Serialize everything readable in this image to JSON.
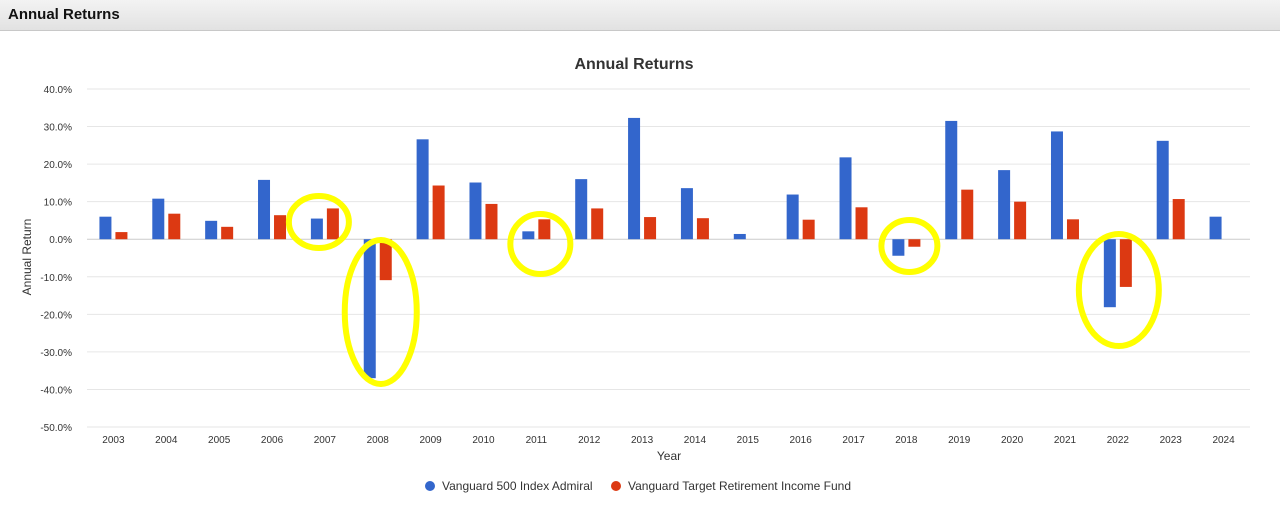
{
  "header": {
    "title": "Annual Returns"
  },
  "colors": {
    "series1": "#3366cc",
    "series2": "#dc3912",
    "highlight": "#ffff00",
    "grid": "#e6e6e6"
  },
  "chart_data": {
    "type": "bar",
    "title": "Annual Returns",
    "xlabel": "Year",
    "ylabel": "Annual Return",
    "ylim": [
      -50,
      40
    ],
    "yticks": [
      "40.0%",
      "30.0%",
      "20.0%",
      "10.0%",
      "0.0%",
      "-10.0%",
      "-20.0%",
      "-30.0%",
      "-40.0%",
      "-50.0%"
    ],
    "ytick_values": [
      40,
      30,
      20,
      10,
      0,
      -10,
      -20,
      -30,
      -40,
      -50
    ],
    "categories": [
      "2003",
      "2004",
      "2005",
      "2006",
      "2007",
      "2008",
      "2009",
      "2010",
      "2011",
      "2012",
      "2013",
      "2014",
      "2015",
      "2016",
      "2017",
      "2018",
      "2019",
      "2020",
      "2021",
      "2022",
      "2023",
      "2024"
    ],
    "series": [
      {
        "name": "Vanguard 500 Index Admiral",
        "values": [
          6.0,
          10.8,
          4.9,
          15.8,
          5.5,
          -37.0,
          26.6,
          15.1,
          2.1,
          16.0,
          32.3,
          13.6,
          1.4,
          11.9,
          21.8,
          -4.4,
          31.5,
          18.4,
          28.7,
          -18.1,
          26.2,
          6.0
        ]
      },
      {
        "name": "Vanguard Target Retirement Income Fund",
        "values": [
          1.9,
          6.8,
          3.3,
          6.4,
          8.2,
          -10.9,
          14.3,
          9.4,
          5.3,
          8.2,
          5.9,
          5.6,
          null,
          5.2,
          8.5,
          -2.0,
          13.2,
          10.0,
          5.3,
          -12.7,
          10.7,
          null
        ]
      }
    ],
    "legend": "bottom",
    "grid": true
  }
}
